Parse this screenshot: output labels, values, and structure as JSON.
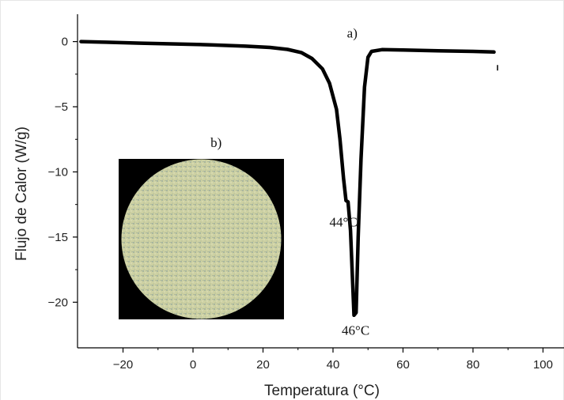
{
  "chart_data": {
    "type": "line",
    "xlabel": "Temperatura (°C)",
    "ylabel": "Flujo de Calor (W/g)",
    "xlim": [
      -33,
      106
    ],
    "ylim": [
      -23.5,
      2.1
    ],
    "x_ticks": [
      -20,
      0,
      20,
      40,
      60,
      80,
      100
    ],
    "y_ticks": [
      0,
      -5,
      -10,
      -15,
      -20
    ],
    "grid": false,
    "series": [
      {
        "color": "#000000",
        "points": [
          [
            -32,
            0.0
          ],
          [
            -25,
            -0.05
          ],
          [
            -15,
            -0.12
          ],
          [
            -5,
            -0.18
          ],
          [
            5,
            -0.25
          ],
          [
            15,
            -0.35
          ],
          [
            22,
            -0.45
          ],
          [
            27,
            -0.6
          ],
          [
            31,
            -0.85
          ],
          [
            34,
            -1.3
          ],
          [
            37,
            -2.1
          ],
          [
            39,
            -3.2
          ],
          [
            41,
            -5.2
          ],
          [
            42,
            -7.5
          ],
          [
            43,
            -10.5
          ],
          [
            43.7,
            -12.2
          ],
          [
            44.3,
            -12.3
          ],
          [
            45,
            -14.5
          ],
          [
            46,
            -21.0
          ],
          [
            46.6,
            -20.8
          ],
          [
            47.2,
            -15.0
          ],
          [
            48,
            -9.0
          ],
          [
            49,
            -3.5
          ],
          [
            50,
            -1.2
          ],
          [
            51,
            -0.75
          ],
          [
            54,
            -0.62
          ],
          [
            60,
            -0.65
          ],
          [
            70,
            -0.7
          ],
          [
            80,
            -0.75
          ],
          [
            86,
            -0.8
          ]
        ]
      }
    ],
    "annotations": [
      {
        "text": "a)",
        "x": 44,
        "y": 0.3
      },
      {
        "text": "b)",
        "x": 5,
        "y": -8.1
      },
      {
        "text": "44°C",
        "x": 39,
        "y": -14.2
      },
      {
        "text": "46°C",
        "x": 42.5,
        "y": -22.5
      }
    ],
    "marker_stub": {
      "x": 87,
      "y": -2.1
    }
  },
  "inset": {
    "label": "b)",
    "background": "#000000",
    "disc_color": "#cfd3a6"
  },
  "colors": {
    "frame": "#e6e6e6",
    "curve": "#000000"
  }
}
